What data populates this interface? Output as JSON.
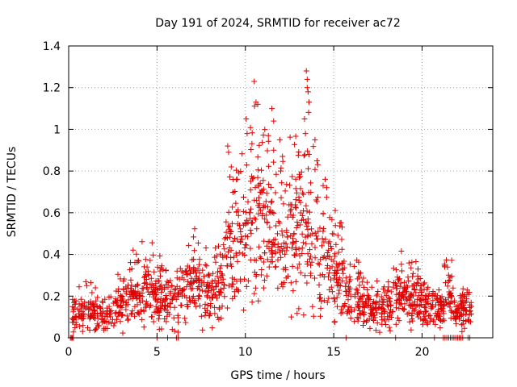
{
  "chart_data": {
    "type": "scatter",
    "title": "Day 191 of 2024, SRMTID for receiver ac72",
    "xlabel": "GPS time / hours",
    "ylabel": "SRMTID / TECUs",
    "xlim": [
      0,
      24
    ],
    "ylim": [
      0,
      1.4
    ],
    "xticks": [
      0,
      5,
      10,
      15,
      20
    ],
    "yticks": [
      0,
      0.2,
      0.4,
      0.6,
      0.8,
      1,
      1.2,
      1.4
    ],
    "ytick_labels": [
      "0",
      "0.2",
      "0.4",
      "0.6",
      "0.8",
      "1",
      "1.2",
      "1.4"
    ],
    "grid": true,
    "marker": "+",
    "series": [
      {
        "name": "SRMTID",
        "color": "#e00000",
        "profile": [
          [
            0.2,
            0.1
          ],
          [
            0.5,
            0.12
          ],
          [
            1.0,
            0.14
          ],
          [
            1.5,
            0.12
          ],
          [
            2.0,
            0.1
          ],
          [
            2.5,
            0.13
          ],
          [
            3.0,
            0.16
          ],
          [
            3.5,
            0.2
          ],
          [
            4.0,
            0.22
          ],
          [
            4.5,
            0.24
          ],
          [
            5.0,
            0.2
          ],
          [
            5.5,
            0.17
          ],
          [
            6.0,
            0.18
          ],
          [
            6.5,
            0.22
          ],
          [
            7.0,
            0.26
          ],
          [
            7.5,
            0.24
          ],
          [
            8.0,
            0.2
          ],
          [
            8.5,
            0.25
          ],
          [
            9.0,
            0.36
          ],
          [
            9.5,
            0.45
          ],
          [
            10.0,
            0.5
          ],
          [
            10.5,
            0.56
          ],
          [
            11.0,
            0.58
          ],
          [
            11.5,
            0.5
          ],
          [
            12.0,
            0.44
          ],
          [
            12.5,
            0.47
          ],
          [
            13.0,
            0.5
          ],
          [
            13.5,
            0.55
          ],
          [
            14.0,
            0.45
          ],
          [
            14.5,
            0.38
          ],
          [
            15.0,
            0.34
          ],
          [
            15.5,
            0.28
          ],
          [
            16.0,
            0.2
          ],
          [
            16.5,
            0.17
          ],
          [
            17.0,
            0.15
          ],
          [
            17.5,
            0.14
          ],
          [
            18.0,
            0.16
          ],
          [
            18.5,
            0.2
          ],
          [
            19.0,
            0.2
          ],
          [
            19.5,
            0.18
          ],
          [
            20.0,
            0.17
          ],
          [
            20.5,
            0.15
          ],
          [
            21.0,
            0.12
          ],
          [
            21.5,
            0.22
          ],
          [
            22.0,
            0.1
          ],
          [
            22.5,
            0.15
          ],
          [
            22.8,
            0.12
          ]
        ],
        "outliers": [
          [
            10.5,
            1.23
          ],
          [
            10.7,
            1.12
          ],
          [
            10.6,
            1.13
          ],
          [
            11.5,
            1.1
          ],
          [
            11.6,
            1.04
          ],
          [
            10.05,
            1.05
          ],
          [
            10.1,
            0.98
          ],
          [
            13.45,
            1.28
          ],
          [
            13.5,
            1.24
          ],
          [
            13.5,
            1.2
          ],
          [
            13.55,
            1.18
          ],
          [
            13.6,
            1.13
          ],
          [
            13.35,
            1.05
          ],
          [
            13.4,
            0.98
          ],
          [
            13.6,
            0.88
          ],
          [
            9.0,
            0.92
          ],
          [
            9.05,
            0.89
          ],
          [
            9.2,
            0.82
          ],
          [
            11.95,
            0.95
          ],
          [
            12.1,
            0.87
          ],
          [
            12.0,
            0.8
          ],
          [
            11.6,
            0.9
          ],
          [
            11.3,
            0.97
          ],
          [
            14.1,
            0.83
          ],
          [
            14.4,
            0.73
          ],
          [
            14.6,
            0.72
          ],
          [
            12.6,
            0.1
          ],
          [
            13.3,
            0.11
          ],
          [
            13.8,
            0.15
          ]
        ],
        "zero_marks": [
          0.1,
          0.15,
          0.2,
          0.25,
          5.0,
          5.6,
          6.1,
          6.2,
          15.7,
          18.5,
          20.7,
          21.2,
          21.3,
          21.4,
          21.5,
          21.6,
          21.7,
          21.8,
          21.9,
          22.0,
          22.1,
          22.2,
          22.3,
          22.6,
          22.7
        ],
        "n_points": 1600,
        "noise_scale": 0.55
      }
    ]
  }
}
